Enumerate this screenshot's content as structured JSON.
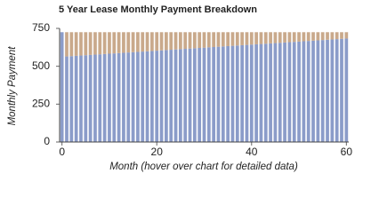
{
  "chart_data": {
    "type": "stacked_bar",
    "title": "5 Year Lease Monthly Payment Breakdown",
    "x_label": "Month (hover over chart for detailed data)",
    "y_label": "Monthly Payment",
    "x": [
      0,
      1,
      2,
      3,
      4,
      5,
      6,
      7,
      8,
      9,
      10,
      11,
      12,
      13,
      14,
      15,
      16,
      17,
      18,
      19,
      20,
      21,
      22,
      23,
      24,
      25,
      26,
      27,
      28,
      29,
      30,
      31,
      32,
      33,
      34,
      35,
      36,
      37,
      38,
      39,
      40,
      41,
      42,
      43,
      44,
      45,
      46,
      47,
      48,
      49,
      50,
      51,
      52,
      53,
      54,
      55,
      56,
      57,
      58,
      59,
      60
    ],
    "series": [
      {
        "color": "#8b9cc9",
        "values": [
          725,
          565,
          567,
          569,
          571,
          573,
          575,
          577,
          579,
          581,
          583,
          585,
          587,
          589,
          591,
          593,
          595,
          597,
          599,
          601,
          603,
          605,
          607,
          609,
          611,
          613,
          615,
          617,
          619,
          621,
          623,
          625,
          627,
          629,
          631,
          633,
          635,
          637,
          639,
          641,
          643,
          645,
          647,
          649,
          651,
          653,
          655,
          657,
          659,
          661,
          663,
          665,
          667,
          669,
          671,
          673,
          675,
          677,
          679,
          681,
          683
        ]
      },
      {
        "color": "#c9a98b",
        "values": [
          0,
          160,
          158,
          156,
          154,
          152,
          150,
          148,
          146,
          144,
          142,
          140,
          138,
          136,
          134,
          132,
          130,
          128,
          126,
          124,
          122,
          120,
          118,
          116,
          114,
          112,
          110,
          108,
          106,
          104,
          102,
          100,
          98,
          96,
          94,
          92,
          90,
          88,
          86,
          84,
          82,
          80,
          78,
          76,
          74,
          72,
          70,
          68,
          66,
          64,
          62,
          60,
          58,
          56,
          54,
          52,
          50,
          48,
          46,
          44,
          42
        ]
      }
    ],
    "xlim": [
      -0.5,
      60.5
    ],
    "xticks": [
      0,
      20,
      40,
      60
    ],
    "ylim": [
      0,
      750
    ],
    "yticks": [
      0,
      250,
      500,
      750
    ],
    "grid": false
  }
}
